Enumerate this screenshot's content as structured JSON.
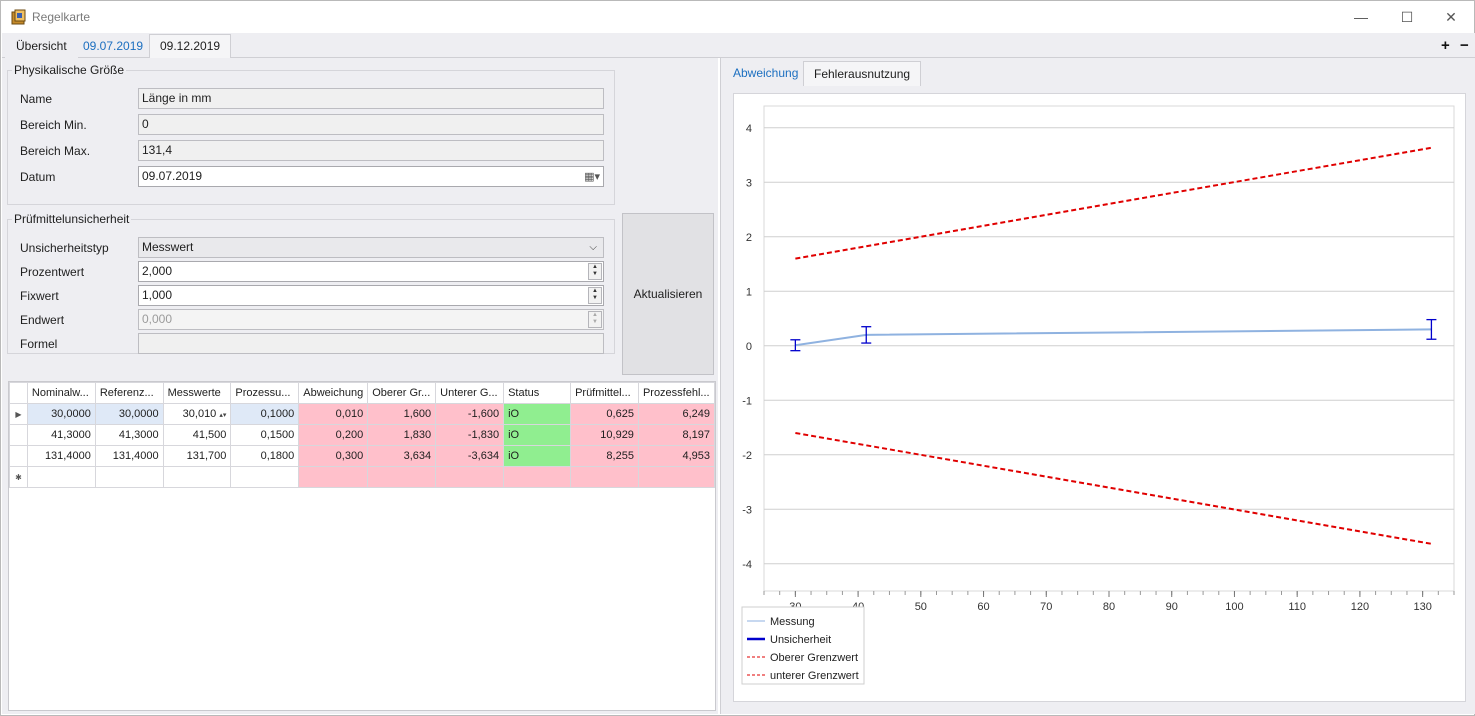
{
  "window": {
    "title": "Regelkarte",
    "minimize": "—",
    "maximize": "☐",
    "close": "✕"
  },
  "doc_tabs": [
    {
      "label": "Übersicht"
    },
    {
      "label": "09.07.2019"
    },
    {
      "label": "09.12.2019"
    }
  ],
  "doc_actions": {
    "add": "+",
    "remove": "−"
  },
  "physical": {
    "title": "Physikalische Größe",
    "name_label": "Name",
    "name_value": "Länge in mm",
    "min_label": "Bereich Min.",
    "min_value": "0",
    "max_label": "Bereich Max.",
    "max_value": "131,4",
    "date_label": "Datum",
    "date_value": "09.07.2019"
  },
  "uncertainty": {
    "title": "Prüfmittelunsicherheit",
    "type_label": "Unsicherheitstyp",
    "type_value": "Messwert",
    "percent_label": "Prozentwert",
    "percent_value": "2,000",
    "fix_label": "Fixwert",
    "fix_value": "1,000",
    "end_label": "Endwert",
    "end_value": "0,000",
    "formula_label": "Formel",
    "formula_value": ""
  },
  "update_button": "Aktualisieren",
  "table": {
    "headers": [
      "Nominalw...",
      "Referenz...",
      "Messwerte",
      "Prozessu...",
      "Abweichung",
      "Oberer Gr...",
      "Unterer G...",
      "Status",
      "Prüfmittel...",
      "Prozessfehl..."
    ],
    "rows": [
      [
        "30,0000",
        "30,0000",
        "30,010",
        "0,1000",
        "0,010",
        "1,600",
        "-1,600",
        "iO",
        "0,625",
        "6,249"
      ],
      [
        "41,3000",
        "41,3000",
        "41,500",
        "0,1500",
        "0,200",
        "1,830",
        "-1,830",
        "iO",
        "10,929",
        "8,197"
      ],
      [
        "131,4000",
        "131,4000",
        "131,700",
        "0,1800",
        "0,300",
        "3,634",
        "-3,634",
        "iO",
        "8,255",
        "4,953"
      ]
    ],
    "row_marker": "▶",
    "new_row_marker": "✱"
  },
  "chart_tabs": [
    {
      "label": "Abweichung"
    },
    {
      "label": "Fehlerausnutzung"
    }
  ],
  "chart_data": {
    "type": "line",
    "xlim": [
      25,
      135
    ],
    "ylim": [
      -4.5,
      4.4
    ],
    "x_ticks": [
      30,
      40,
      50,
      60,
      70,
      80,
      90,
      100,
      110,
      120,
      130
    ],
    "y_ticks": [
      4,
      3,
      2,
      1,
      0,
      -1,
      -2,
      -3,
      -4
    ],
    "grid": true,
    "legend_position": "bottom-left",
    "series": [
      {
        "name": "Messung",
        "color": "#8fb2e0",
        "style": "solid",
        "x": [
          30,
          41.3,
          131.4
        ],
        "y": [
          0.01,
          0.2,
          0.3
        ]
      },
      {
        "name": "Unsicherheit",
        "color": "#0000cc",
        "style": "errorbar",
        "x": [
          30,
          41.3,
          131.4
        ],
        "y": [
          0.01,
          0.2,
          0.3
        ],
        "err": [
          0.1,
          0.15,
          0.18
        ]
      },
      {
        "name": "Oberer Grenzwert",
        "color": "#e00000",
        "style": "dashed",
        "x": [
          30,
          131.4
        ],
        "y": [
          1.6,
          3.634
        ]
      },
      {
        "name": "unterer Grenzwert",
        "color": "#e00000",
        "style": "dashed",
        "x": [
          30,
          131.4
        ],
        "y": [
          -1.6,
          -3.634
        ]
      }
    ]
  }
}
